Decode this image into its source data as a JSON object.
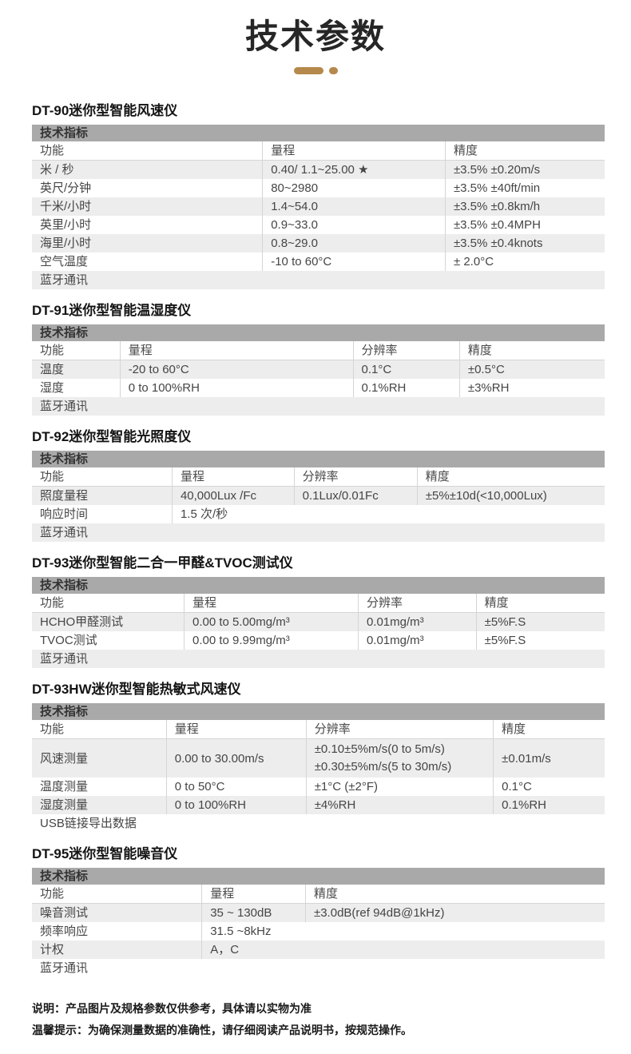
{
  "page": {
    "title": "技术参数",
    "colors": {
      "accent": "#b5894c",
      "table_header_bg": "#a9a9a9",
      "stripe_bg": "#ededed",
      "divider": "#d5d5d5"
    }
  },
  "sections": [
    {
      "product": "DT-90迷你型智能风速仪",
      "table_title": "技术指标",
      "columns": [
        "功能",
        "量程",
        "精度"
      ],
      "col_widths": [
        "40.2%",
        "31.9%",
        "27.9%"
      ],
      "rows": [
        [
          "米 / 秒",
          "0.40/ 1.1~25.00 ★",
          "±3.5% ±0.20m/s"
        ],
        [
          "英尺/分钟",
          "80~2980",
          "±3.5% ±40ft/min"
        ],
        [
          "千米/小时",
          "1.4~54.0",
          "±3.5% ±0.8km/h"
        ],
        [
          "英里/小时",
          "0.9~33.0",
          "±3.5% ±0.4MPH"
        ],
        [
          "海里/小时",
          "0.8~29.0",
          "±3.5% ±0.4knots"
        ],
        [
          "空气温度",
          "-10 to 60°C",
          "± 2.0°C"
        ],
        [
          "蓝牙通讯"
        ]
      ]
    },
    {
      "product": "DT-91迷你型智能温湿度仪",
      "table_title": "技术指标",
      "columns": [
        "功能",
        "量程",
        "分辨率",
        "精度"
      ],
      "col_widths": [
        "15.3%",
        "40.7%",
        "18.6%",
        "25.4%"
      ],
      "rows": [
        [
          "温度",
          "-20 to 60°C",
          "0.1°C",
          "±0.5°C"
        ],
        [
          "湿度",
          "0 to 100%RH",
          "0.1%RH",
          "±3%RH"
        ],
        [
          "蓝牙通讯"
        ]
      ]
    },
    {
      "product": "DT-92迷你型智能光照度仪",
      "table_title": "技术指标",
      "columns": [
        "功能",
        "量程",
        "分辨率",
        "精度"
      ],
      "col_widths": [
        "24.4%",
        "21.3%",
        "21.5%",
        "32.8%"
      ],
      "rows": [
        [
          "照度量程",
          "40,000Lux /Fc",
          "0.1Lux/0.01Fc",
          "±5%±10d(<10,000Lux)"
        ],
        [
          "响应时间",
          "1.5 次/秒",
          "",
          ""
        ],
        [
          "蓝牙通讯"
        ]
      ]
    },
    {
      "product": "DT-93迷你型智能二合一甲醛&TVOC测试仪",
      "table_title": "技术指标",
      "columns": [
        "功能",
        "量程",
        "分辨率",
        "精度"
      ],
      "col_widths": [
        "26.5%",
        "30.4%",
        "20.6%",
        "22.5%"
      ],
      "rows": [
        [
          "HCHO甲醛测试",
          "0.00 to 5.00mg/m³",
          "0.01mg/m³",
          "±5%F.S"
        ],
        [
          "TVOC测试",
          "0.00 to 9.99mg/m³",
          "0.01mg/m³",
          "±5%F.S"
        ],
        [
          "蓝牙通讯"
        ]
      ]
    },
    {
      "product": "DT-93HW迷你型智能热敏式风速仪",
      "table_title": "技术指标",
      "columns": [
        "功能",
        "量程",
        "分辨率",
        "精度"
      ],
      "col_widths": [
        "23.4%",
        "24.4%",
        "32.7%",
        "19.5%"
      ],
      "rows": [
        [
          "风速测量",
          "0.00 to 30.00m/s",
          "±0.10±5%m/s(0 to 5m/s)\n±0.30±5%m/s(5 to 30m/s)",
          "±0.01m/s"
        ],
        [
          "温度测量",
          "0 to 50°C",
          "±1°C (±2°F)",
          "0.1°C"
        ],
        [
          "湿度测量",
          "0 to 100%RH",
          "±4%RH",
          "0.1%RH"
        ],
        [
          "USB链接导出数据"
        ]
      ]
    },
    {
      "product": "DT-95迷你型智能噪音仪",
      "table_title": "技术指标",
      "columns": [
        "功能",
        "量程",
        "精度"
      ],
      "col_widths": [
        "29.6%",
        "18.1%",
        "52.3%"
      ],
      "rows": [
        [
          "噪音测试",
          "35 ~ 130dB",
          "±3.0dB(ref 94dB@1kHz)"
        ],
        [
          "频率响应",
          "31.5 ~8kHz",
          ""
        ],
        [
          "计权",
          "A，C",
          ""
        ],
        [
          "蓝牙通讯"
        ]
      ]
    }
  ],
  "notes": [
    "说明：产品图片及规格参数仅供参考，具体请以实物为准",
    "温馨提示：为确保测量数据的准确性，请仔细阅读产品说明书，按规范操作。"
  ]
}
